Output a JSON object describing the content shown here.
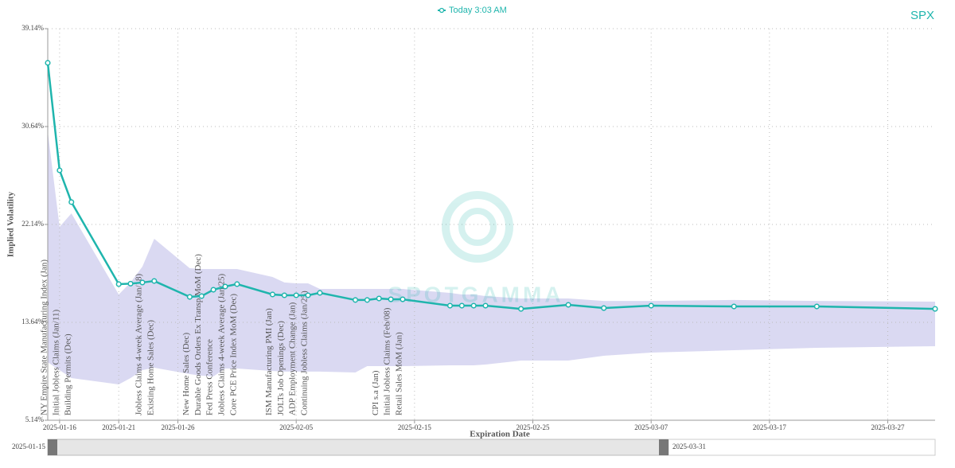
{
  "chart_data": {
    "type": "line",
    "ticker": "SPX",
    "watermark": "SPOTGAMMA",
    "xlabel": "Expiration Date",
    "ylabel": "Implied Volatility",
    "x": [
      "2025-01-15",
      "2025-01-16",
      "2025-01-17",
      "2025-01-21",
      "2025-01-22",
      "2025-01-23",
      "2025-01-24",
      "2025-01-27",
      "2025-01-28",
      "2025-01-29",
      "2025-01-30",
      "2025-01-31",
      "2025-02-03",
      "2025-02-04",
      "2025-02-05",
      "2025-02-06",
      "2025-02-07",
      "2025-02-10",
      "2025-02-11",
      "2025-02-12",
      "2025-02-13",
      "2025-02-14",
      "2025-02-18",
      "2025-02-19",
      "2025-02-20",
      "2025-02-21",
      "2025-02-24",
      "2025-02-28",
      "2025-03-03",
      "2025-03-07",
      "2025-03-14",
      "2025-03-21",
      "2025-03-31"
    ],
    "series": [
      {
        "name": "Today 3:03 AM",
        "color": "#1fb5ad",
        "values": [
          36.17,
          26.84,
          24.08,
          16.96,
          17.0,
          17.1,
          17.23,
          15.85,
          15.92,
          16.47,
          16.75,
          16.96,
          16.06,
          15.99,
          15.99,
          15.99,
          16.2,
          15.58,
          15.58,
          15.71,
          15.64,
          15.64,
          15.09,
          15.09,
          15.09,
          15.09,
          14.81,
          15.16,
          14.88,
          15.09,
          15.02,
          15.02,
          14.81
        ]
      }
    ],
    "band": {
      "color": "#d4d2f0",
      "upper": [
        30.2,
        21.93,
        23.1,
        16.06,
        17.1,
        18.48,
        20.9,
        18.34,
        18.27,
        18.27,
        18.27,
        18.27,
        17.58,
        17.1,
        17.03,
        17.03,
        16.54,
        16.54,
        16.54,
        16.54,
        16.54,
        16.54,
        16.2,
        16.06,
        16.06,
        15.92,
        15.71,
        15.71,
        15.5,
        15.5,
        15.58,
        15.5,
        15.44
      ],
      "lower": [
        10.18,
        9.49,
        8.8,
        8.25,
        8.8,
        9.49,
        9.7,
        9.15,
        9.01,
        8.94,
        9.63,
        9.63,
        9.42,
        9.36,
        9.36,
        9.36,
        9.36,
        9.29,
        9.84,
        9.84,
        9.84,
        9.84,
        9.91,
        9.91,
        9.91,
        9.98,
        10.32,
        10.32,
        10.74,
        11.01,
        11.22,
        11.43,
        11.57
      ]
    },
    "events": [
      {
        "x": "2025-01-15",
        "label": "NY Empire State Manufacturing Index (Jan)"
      },
      {
        "x": "2025-01-16",
        "label": "Initial Jobless Claims (Jan/11)"
      },
      {
        "x": "2025-01-17",
        "label": "Building Permits (Dec)"
      },
      {
        "x": "2025-01-23",
        "label": "Jobless Claims 4-week Average (Jan/18)"
      },
      {
        "x": "2025-01-24",
        "label": "Existing Home Sales (Dec)"
      },
      {
        "x": "2025-01-27",
        "label": "New Home Sales (Dec)"
      },
      {
        "x": "2025-01-28",
        "label": "Durable Goods Orders Ex Transp MoM (Dec)"
      },
      {
        "x": "2025-01-29",
        "label": "Fed Press Conference"
      },
      {
        "x": "2025-01-30",
        "label": "Jobless Claims 4-week Average (Jan/25)"
      },
      {
        "x": "2025-01-31",
        "label": "Core PCE Price Index MoM (Dec)"
      },
      {
        "x": "2025-02-03",
        "label": "ISM Manufacturing PMI (Jan)"
      },
      {
        "x": "2025-02-04",
        "label": "JOLTs Job Openings (Dec)"
      },
      {
        "x": "2025-02-05",
        "label": "ADP Employment Change (Jan)"
      },
      {
        "x": "2025-02-06",
        "label": "Continuing Jobless Claims (Jan/25)"
      },
      {
        "x": "2025-02-12",
        "label": "CPI s.a (Jan)"
      },
      {
        "x": "2025-02-13",
        "label": "Initial Jobless Claims (Feb/08)"
      },
      {
        "x": "2025-02-14",
        "label": "Retail Sales MoM (Jan)"
      }
    ],
    "xlim": [
      "2025-01-15",
      "2025-03-31"
    ],
    "xticks": [
      "2025-01-16",
      "2025-01-21",
      "2025-01-26",
      "2025-02-05",
      "2025-02-15",
      "2025-02-25",
      "2025-03-07",
      "2025-03-17",
      "2025-03-27"
    ],
    "ylim": [
      5.14,
      39.14
    ],
    "yticks": [
      {
        "value": 5.14,
        "label": "5.14%"
      },
      {
        "value": 13.64,
        "label": "13.64%"
      },
      {
        "value": 22.14,
        "label": "22.14%"
      },
      {
        "value": 30.64,
        "label": "30.64%"
      },
      {
        "value": 39.14,
        "label": "39.14%"
      }
    ],
    "grid": true
  }
}
